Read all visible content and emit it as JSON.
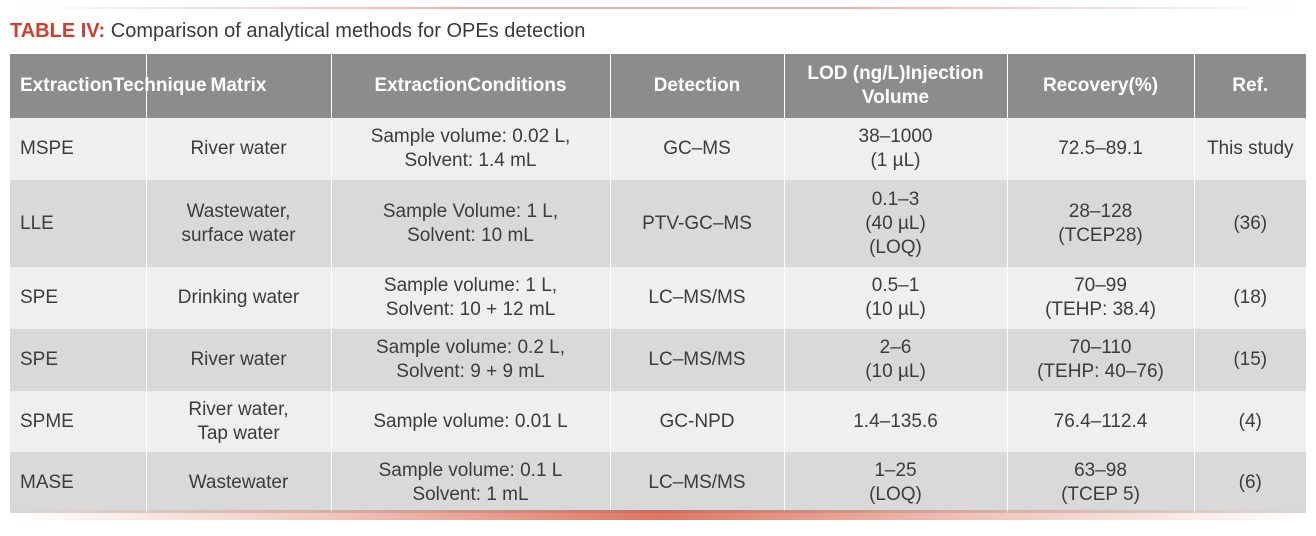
{
  "caption": {
    "label": "TABLE IV:",
    "text": "Comparison of analytical methods for OPEs detection"
  },
  "table": {
    "headers": [
      [
        "Extraction",
        "Technique"
      ],
      [
        "Matrix"
      ],
      [
        "Extraction",
        "Conditions"
      ],
      [
        "Detection"
      ],
      [
        "LOD (ng/L)",
        "Injection Volume"
      ],
      [
        "Recovery",
        "(%)"
      ],
      [
        "Ref."
      ]
    ],
    "rows": [
      {
        "technique": [
          "MSPE"
        ],
        "matrix": [
          "River water"
        ],
        "conditions": [
          "Sample volume: 0.02 L,",
          "Solvent: 1.4 mL"
        ],
        "detection": [
          "GC–MS"
        ],
        "lod": [
          "38–1000",
          "(1 µL)"
        ],
        "recovery": [
          "72.5–89.1"
        ],
        "ref": [
          "This study"
        ]
      },
      {
        "technique": [
          "LLE"
        ],
        "matrix": [
          "Wastewater,",
          "surface water"
        ],
        "conditions": [
          "Sample Volume: 1 L,",
          "Solvent: 10 mL"
        ],
        "detection": [
          "PTV-GC–MS"
        ],
        "lod": [
          "0.1–3",
          "(40 µL)",
          "(LOQ)"
        ],
        "recovery": [
          "28–128",
          "(TCEP28)"
        ],
        "ref": [
          "(36)"
        ]
      },
      {
        "technique": [
          "SPE"
        ],
        "matrix": [
          "Drinking water"
        ],
        "conditions": [
          "Sample volume: 1 L,",
          "Solvent: 10 + 12 mL"
        ],
        "detection": [
          "LC–MS/MS"
        ],
        "lod": [
          "0.5–1",
          "(10 µL)"
        ],
        "recovery": [
          "70–99",
          "(TEHP: 38.4)"
        ],
        "ref": [
          "(18)"
        ]
      },
      {
        "technique": [
          "SPE"
        ],
        "matrix": [
          "River water"
        ],
        "conditions": [
          "Sample volume: 0.2 L,",
          "Solvent: 9 + 9 mL"
        ],
        "detection": [
          "LC–MS/MS"
        ],
        "lod": [
          "2–6",
          "(10 µL)"
        ],
        "recovery": [
          "70–110",
          "(TEHP: 40–76)"
        ],
        "ref": [
          "(15)"
        ]
      },
      {
        "technique": [
          "SPME"
        ],
        "matrix": [
          "River water,",
          "Tap water"
        ],
        "conditions": [
          "Sample volume: 0.01 L"
        ],
        "detection": [
          "GC-NPD"
        ],
        "lod": [
          "1.4–135.6"
        ],
        "recovery": [
          "76.4–112.4"
        ],
        "ref": [
          "(4)"
        ]
      },
      {
        "technique": [
          "MASE"
        ],
        "matrix": [
          "Wastewater"
        ],
        "conditions": [
          "Sample volume: 0.1 L",
          "Solvent: 1 mL"
        ],
        "detection": [
          "LC–MS/MS"
        ],
        "lod": [
          "1–25",
          "(LOQ)"
        ],
        "recovery": [
          "63–98",
          "(TCEP 5)"
        ],
        "ref": [
          "(6)"
        ]
      }
    ]
  },
  "colors": {
    "accent": "#cc3f2c",
    "header_bg": "#8c8c8c",
    "row_light": "#efefef",
    "row_dark": "#d9d9d9"
  }
}
